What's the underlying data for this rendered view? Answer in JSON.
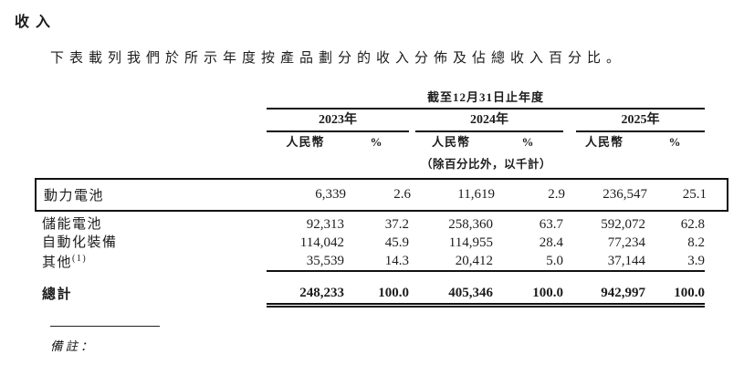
{
  "page": {
    "title": "收入",
    "intro": "下表載列我們於所示年度按產品劃分的收入分佈及佔總收入百分比。"
  },
  "table": {
    "period_header": "截至12月31日止年度",
    "unit_note": "（除百分比外，以千計）",
    "year_groups": [
      {
        "year": "2023年",
        "currency_label": "人民幣",
        "percent_label": "%"
      },
      {
        "year": "2024年",
        "currency_label": "人民幣",
        "percent_label": "%"
      },
      {
        "year": "2025年",
        "currency_label": "人民幣",
        "percent_label": "%"
      }
    ],
    "rows": [
      {
        "label": "動力電池",
        "sup": "",
        "values": [
          "6,339",
          "2.6",
          "11,619",
          "2.9",
          "236,547",
          "25.1"
        ],
        "highlighted": true
      },
      {
        "label": "儲能電池",
        "sup": "",
        "values": [
          "92,313",
          "37.2",
          "258,360",
          "63.7",
          "592,072",
          "62.8"
        ],
        "highlighted": false
      },
      {
        "label": "自動化裝備",
        "sup": "",
        "values": [
          "114,042",
          "45.9",
          "114,955",
          "28.4",
          "77,234",
          "8.2"
        ],
        "highlighted": false
      },
      {
        "label": "其他",
        "sup": "(1)",
        "values": [
          "35,539",
          "14.3",
          "20,412",
          "5.0",
          "37,144",
          "3.9"
        ],
        "highlighted": false
      }
    ],
    "total_row": {
      "label": "總計",
      "values": [
        "248,233",
        "100.0",
        "405,346",
        "100.0",
        "942,997",
        "100.0"
      ]
    }
  },
  "footer": {
    "note_label": "備註："
  },
  "colors": {
    "text": "#1c1c1c",
    "rule": "#111111",
    "highlight_border": "#111111",
    "background": "#ffffff"
  }
}
